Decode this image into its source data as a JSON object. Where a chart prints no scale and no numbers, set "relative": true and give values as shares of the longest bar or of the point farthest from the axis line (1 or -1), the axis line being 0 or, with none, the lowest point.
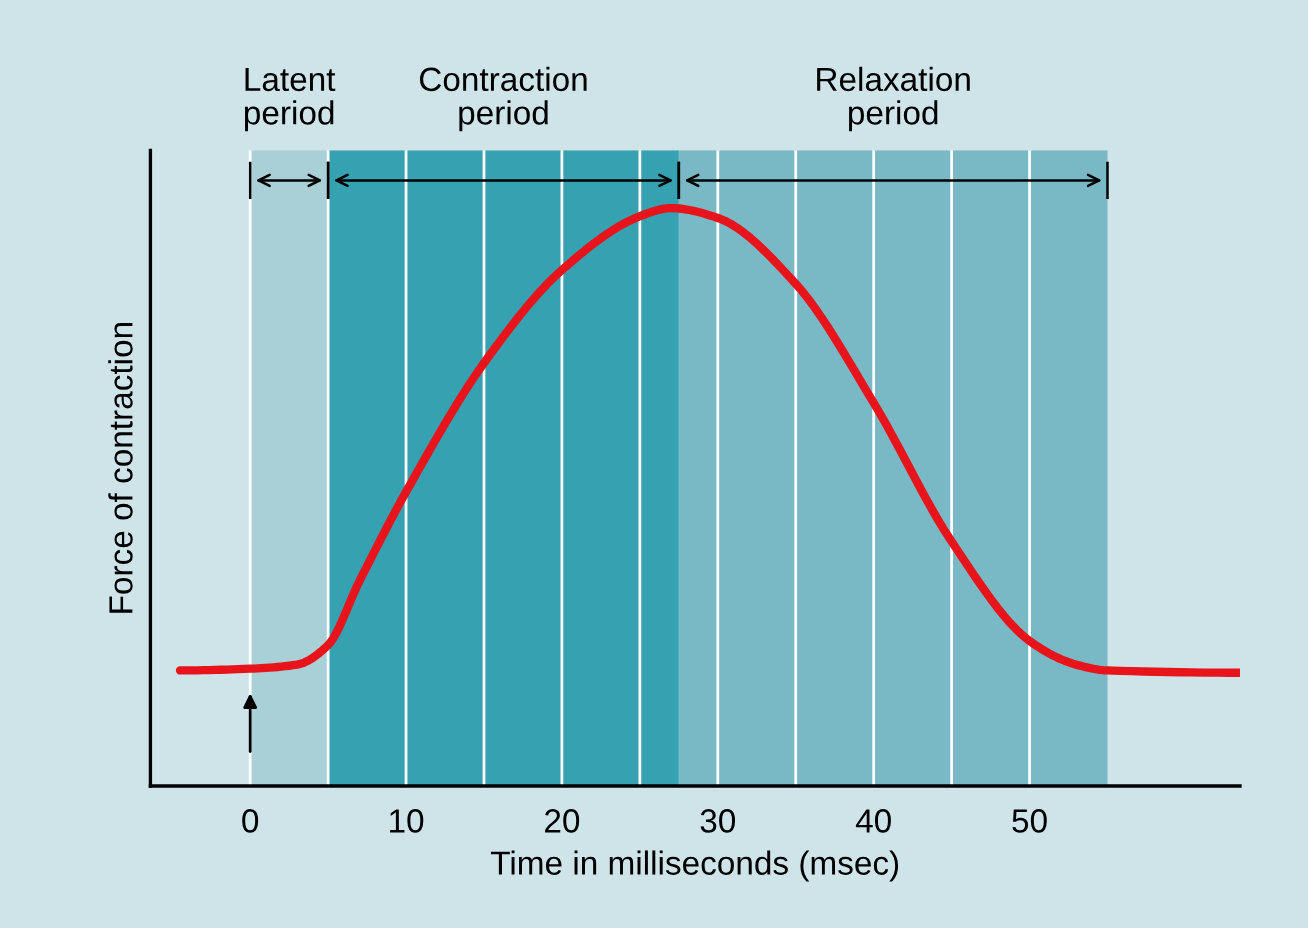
{
  "chart_data": {
    "type": "line",
    "relative": true,
    "xlabel": "Time in milliseconds (msec)",
    "ylabel": "Force of contraction",
    "x": [
      -4.5,
      0,
      3,
      5,
      7,
      10,
      15,
      20,
      25,
      27,
      30,
      35,
      40,
      45,
      50,
      53,
      55,
      63.5
    ],
    "series": [
      {
        "color": "#e8141c",
        "values": [
          0.2,
          0.203,
          0.21,
          0.244,
          0.354,
          0.509,
          0.732,
          0.893,
          0.986,
          1,
          0.983,
          0.869,
          0.663,
          0.423,
          0.251,
          0.21,
          0.2,
          0.196
        ]
      }
    ],
    "xlim": [
      -6.4,
      63.5
    ],
    "xticks": [
      0,
      {
        "value": 5,
        "label": null
      },
      10,
      {
        "value": 15,
        "label": null
      },
      20,
      {
        "value": 25,
        "label": null
      },
      30,
      {
        "value": 35,
        "label": null
      },
      40,
      {
        "value": 45,
        "label": null
      },
      50
    ],
    "grid": "x",
    "marker": "none",
    "line_style": "solid",
    "bands": [
      {
        "axis": "x",
        "from": 0,
        "to": 5,
        "label": "Latent\nperiod",
        "color": "#a9cfd7"
      },
      {
        "axis": "x",
        "from": 5,
        "to": 27.5,
        "label": "Contraction\nperiod",
        "color": "#35a1b1"
      },
      {
        "axis": "x",
        "from": 27.5,
        "to": 55,
        "label": "Relaxation\nperiod",
        "color": "#79b9c5"
      }
    ]
  }
}
